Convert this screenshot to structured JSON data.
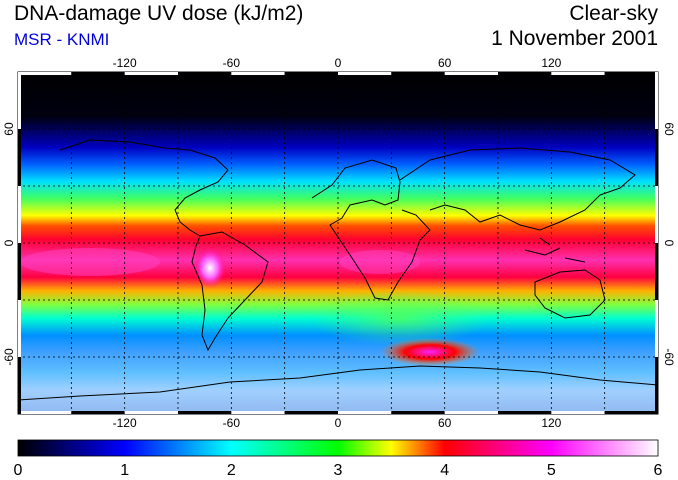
{
  "header": {
    "title": "DNA-damage UV dose (kJ/m2)",
    "source": "MSR - KNMI",
    "condition": "Clear-sky",
    "date": "1 November 2001"
  },
  "map": {
    "projection": "equirectangular",
    "lon_range": [
      -180,
      180
    ],
    "lat_range": [
      -90,
      90
    ],
    "grid": true,
    "grid_style": "dotted",
    "lon_ticks": [
      "-120",
      "-60",
      "0",
      "60",
      "120"
    ],
    "lat_ticks": [
      "60",
      "0",
      "-60"
    ],
    "max_zone": "tropics",
    "peak_areas": [
      "South America (Andes)",
      "South Atlantic near 60E/-60"
    ]
  },
  "colorbar": {
    "min": 0,
    "max": 6,
    "labels": [
      "0",
      "1",
      "2",
      "3",
      "4",
      "5",
      "6"
    ],
    "colors": [
      "#000000",
      "#0000ff",
      "#00ffff",
      "#00ff00",
      "#ffff00",
      "#ff0000",
      "#ff00ff",
      "#ffffff"
    ]
  }
}
